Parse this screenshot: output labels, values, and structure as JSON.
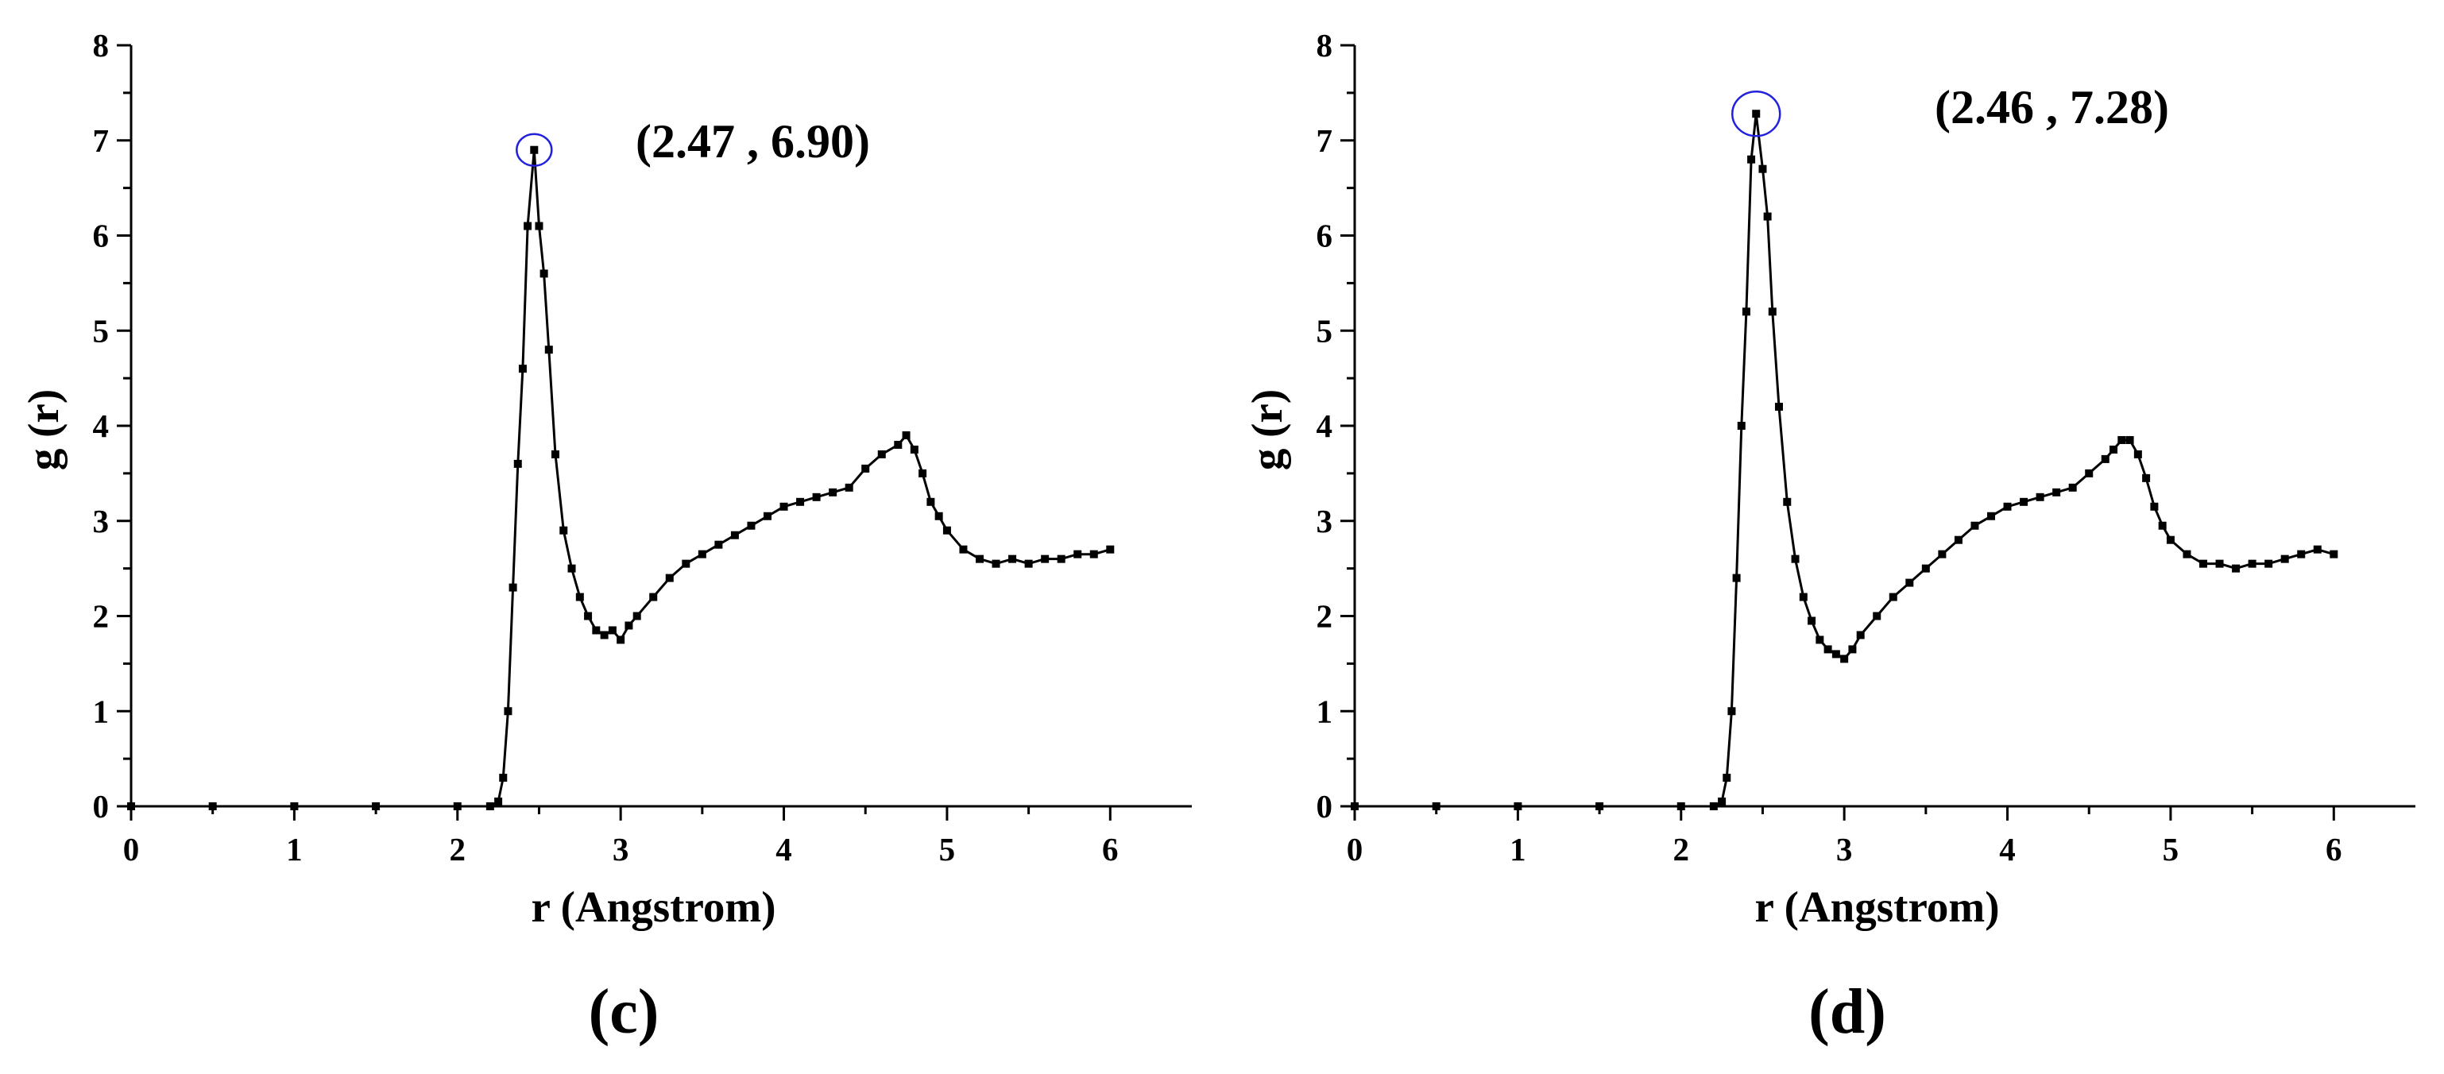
{
  "chart_data": [
    {
      "type": "line",
      "panel_label": "(c)",
      "xlabel": "r (Angstrom)",
      "ylabel": "g (r)",
      "xlim": [
        0,
        6.5
      ],
      "ylim": [
        0,
        8
      ],
      "xticks": [
        "0",
        "1",
        "2",
        "3",
        "4",
        "5",
        "6"
      ],
      "yticks": [
        "0",
        "1",
        "2",
        "3",
        "4",
        "5",
        "6",
        "7",
        "8"
      ],
      "grid": false,
      "line_color": "#000000",
      "marker": "small filled squares",
      "peak": {
        "x": 2.47,
        "y": 6.9,
        "label": "(2.47 , 6.90)",
        "circle_color": "#2222dd"
      },
      "series": [
        {
          "x": [
            0.0,
            0.5,
            1.0,
            1.5,
            2.0,
            2.2,
            2.25,
            2.28,
            2.31,
            2.34,
            2.37,
            2.4,
            2.43,
            2.47,
            2.5,
            2.53,
            2.56,
            2.6,
            2.65,
            2.7,
            2.75,
            2.8,
            2.85,
            2.9,
            2.95,
            3.0,
            3.05,
            3.1,
            3.2,
            3.3,
            3.4,
            3.5,
            3.6,
            3.7,
            3.8,
            3.9,
            4.0,
            4.1,
            4.2,
            4.3,
            4.4,
            4.5,
            4.6,
            4.7,
            4.75,
            4.8,
            4.85,
            4.9,
            4.95,
            5.0,
            5.1,
            5.2,
            5.3,
            5.4,
            5.5,
            5.6,
            5.7,
            5.8,
            5.9,
            6.0
          ],
          "y": [
            0.0,
            0.0,
            0.0,
            0.0,
            0.0,
            0.0,
            0.05,
            0.3,
            1.0,
            2.3,
            3.6,
            4.6,
            6.1,
            6.9,
            6.1,
            5.6,
            4.8,
            3.7,
            2.9,
            2.5,
            2.2,
            2.0,
            1.85,
            1.8,
            1.85,
            1.75,
            1.9,
            2.0,
            2.2,
            2.4,
            2.55,
            2.65,
            2.75,
            2.85,
            2.95,
            3.05,
            3.15,
            3.2,
            3.25,
            3.3,
            3.35,
            3.55,
            3.7,
            3.8,
            3.9,
            3.75,
            3.5,
            3.2,
            3.05,
            2.9,
            2.7,
            2.6,
            2.55,
            2.6,
            2.55,
            2.6,
            2.6,
            2.65,
            2.65,
            2.7
          ]
        }
      ]
    },
    {
      "type": "line",
      "panel_label": "(d)",
      "xlabel": "r (Angstrom)",
      "ylabel": "g (r)",
      "xlim": [
        0,
        6.5
      ],
      "ylim": [
        0,
        8
      ],
      "xticks": [
        "0",
        "1",
        "2",
        "3",
        "4",
        "5",
        "6"
      ],
      "yticks": [
        "0",
        "1",
        "2",
        "3",
        "4",
        "5",
        "6",
        "7",
        "8"
      ],
      "grid": false,
      "line_color": "#000000",
      "marker": "small filled squares",
      "peak": {
        "x": 2.46,
        "y": 7.28,
        "label": "(2.46 , 7.28)",
        "circle_color": "#2222dd"
      },
      "series": [
        {
          "x": [
            0.0,
            0.5,
            1.0,
            1.5,
            2.0,
            2.2,
            2.25,
            2.28,
            2.31,
            2.34,
            2.37,
            2.4,
            2.43,
            2.46,
            2.5,
            2.53,
            2.56,
            2.6,
            2.65,
            2.7,
            2.75,
            2.8,
            2.85,
            2.9,
            2.95,
            3.0,
            3.05,
            3.1,
            3.2,
            3.3,
            3.4,
            3.5,
            3.6,
            3.7,
            3.8,
            3.9,
            4.0,
            4.1,
            4.2,
            4.3,
            4.4,
            4.5,
            4.6,
            4.65,
            4.7,
            4.75,
            4.8,
            4.85,
            4.9,
            4.95,
            5.0,
            5.1,
            5.2,
            5.3,
            5.4,
            5.5,
            5.6,
            5.7,
            5.8,
            5.9,
            6.0
          ],
          "y": [
            0.0,
            0.0,
            0.0,
            0.0,
            0.0,
            0.0,
            0.05,
            0.3,
            1.0,
            2.4,
            4.0,
            5.2,
            6.8,
            7.28,
            6.7,
            6.2,
            5.2,
            4.2,
            3.2,
            2.6,
            2.2,
            1.95,
            1.75,
            1.65,
            1.6,
            1.55,
            1.65,
            1.8,
            2.0,
            2.2,
            2.35,
            2.5,
            2.65,
            2.8,
            2.95,
            3.05,
            3.15,
            3.2,
            3.25,
            3.3,
            3.35,
            3.5,
            3.65,
            3.75,
            3.85,
            3.85,
            3.7,
            3.45,
            3.15,
            2.95,
            2.8,
            2.65,
            2.55,
            2.55,
            2.5,
            2.55,
            2.55,
            2.6,
            2.65,
            2.7,
            2.65
          ]
        }
      ]
    }
  ]
}
